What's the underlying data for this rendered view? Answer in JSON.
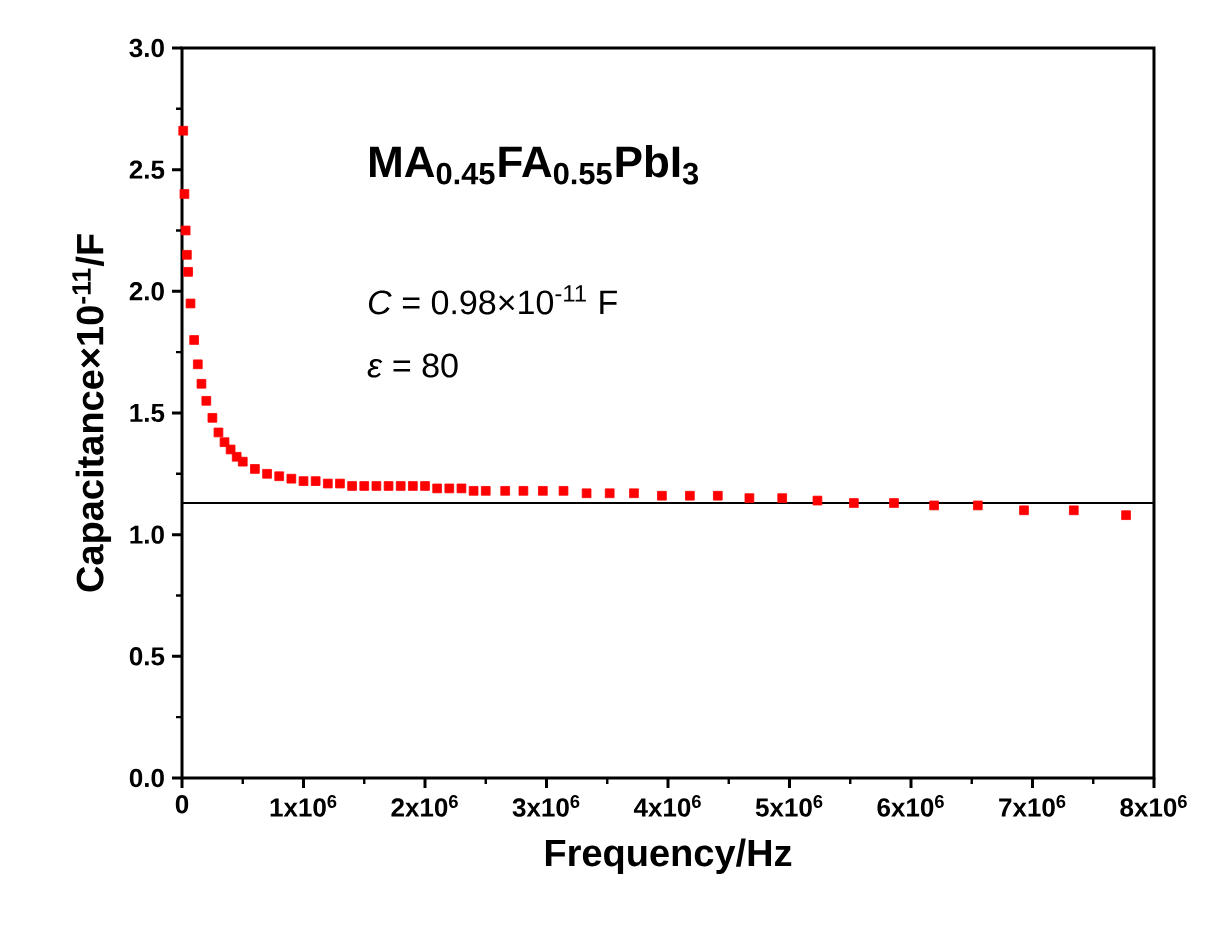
{
  "chart_data": {
    "type": "scatter",
    "xlabel": "Frequency/Hz",
    "ylabel": "Capacitance×10$^{-11}$/F",
    "annotations": [
      "MA$_{0.45}$FA$_{0.55}$PbI$_{3}$",
      "*C* = 0.98×10$^{-11}$ F",
      "*ε* = 80"
    ],
    "xlim": [
      0,
      8000000
    ],
    "xticks": [
      0,
      {
        "value": 1000000,
        "label": "1x10$^{6}$"
      },
      {
        "value": 2000000,
        "label": "2x10$^{6}$"
      },
      {
        "value": 3000000,
        "label": "3x10$^{6}$"
      },
      {
        "value": 4000000,
        "label": "4x10$^{6}$"
      },
      {
        "value": 5000000,
        "label": "5x10$^{6}$"
      },
      {
        "value": 6000000,
        "label": "6x10$^{6}$"
      },
      {
        "value": 7000000,
        "label": "7x10$^{6}$"
      },
      {
        "value": 8000000,
        "label": "8x10$^{6}$"
      }
    ],
    "ylim": [
      0,
      3.0
    ],
    "yticks": [
      {
        "value": 0,
        "label": "0.0"
      },
      0.5,
      {
        "value": 1,
        "label": "1.0"
      },
      1.5,
      {
        "value": 2,
        "label": "2.0"
      },
      2.5,
      {
        "value": 3,
        "label": "3.0"
      }
    ],
    "marker": "square",
    "ref_lines": [
      {
        "axis": "y",
        "value": 1.13,
        "color": "#000000"
      }
    ],
    "series": [
      {
        "color": "#ff0000",
        "x": [
          10000,
          20000,
          30000,
          40000,
          50000,
          70000,
          100000,
          130000,
          160000,
          200000,
          250000,
          300000,
          350000,
          400000,
          450000,
          500000,
          600000,
          700000,
          800000,
          900000,
          1000000,
          1100000,
          1200000,
          1300000,
          1400000,
          1500000,
          1600000,
          1700000,
          1800000,
          1900000,
          2000000,
          2100000,
          2200000,
          2300000,
          2400000,
          2500000,
          2660000,
          2810000,
          2970000,
          3140000,
          3330000,
          3520000,
          3720000,
          3950000,
          4180000,
          4410000,
          4670000,
          4940000,
          5230000,
          5530000,
          5860000,
          6190000,
          6550000,
          6930000,
          7340000,
          7770000
        ],
        "values": [
          2.66,
          2.4,
          2.25,
          2.15,
          2.08,
          1.95,
          1.8,
          1.7,
          1.62,
          1.55,
          1.48,
          1.42,
          1.38,
          1.35,
          1.32,
          1.3,
          1.27,
          1.25,
          1.24,
          1.23,
          1.22,
          1.22,
          1.21,
          1.21,
          1.2,
          1.2,
          1.2,
          1.2,
          1.2,
          1.2,
          1.2,
          1.19,
          1.19,
          1.19,
          1.18,
          1.18,
          1.18,
          1.18,
          1.18,
          1.18,
          1.17,
          1.17,
          1.17,
          1.16,
          1.16,
          1.16,
          1.15,
          1.15,
          1.14,
          1.13,
          1.13,
          1.12,
          1.12,
          1.1,
          1.1,
          1.08
        ]
      }
    ]
  }
}
